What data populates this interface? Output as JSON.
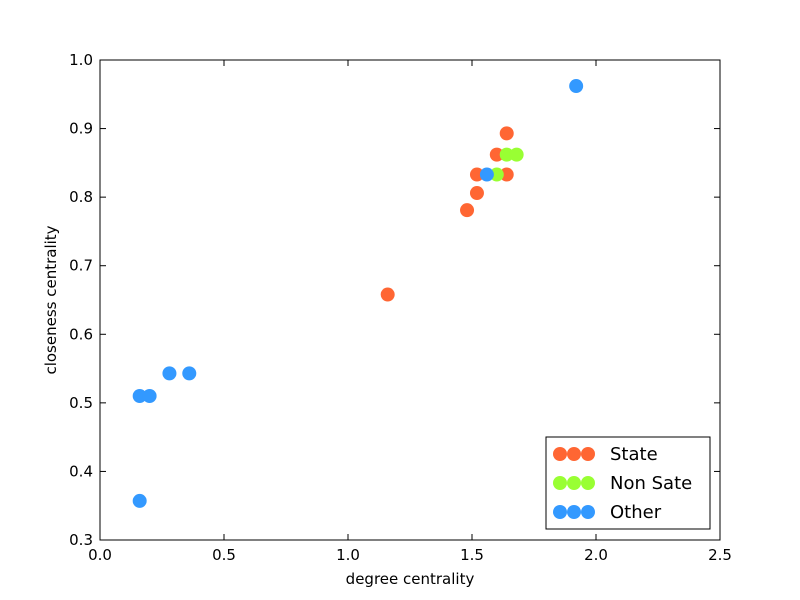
{
  "chart_data": {
    "type": "scatter",
    "xlabel": "degree centrality",
    "ylabel": "closeness centrality",
    "xlim": [
      0.0,
      2.5
    ],
    "ylim": [
      0.3,
      1.0
    ],
    "xticks": [
      "0.0",
      "0.5",
      "1.0",
      "1.5",
      "2.0",
      "2.5"
    ],
    "yticks": [
      "0.3",
      "0.4",
      "0.5",
      "0.6",
      "0.7",
      "0.8",
      "0.9",
      "1.0"
    ],
    "grid": false,
    "legend_position": "bottom-right",
    "series": [
      {
        "name": "State",
        "color": "#ff6633",
        "points": [
          {
            "x": 1.16,
            "y": 0.658
          },
          {
            "x": 1.48,
            "y": 0.781
          },
          {
            "x": 1.52,
            "y": 0.806
          },
          {
            "x": 1.52,
            "y": 0.833
          },
          {
            "x": 1.6,
            "y": 0.862
          },
          {
            "x": 1.64,
            "y": 0.893
          },
          {
            "x": 1.64,
            "y": 0.833
          }
        ]
      },
      {
        "name": "Non Sate",
        "color": "#99ff33",
        "points": [
          {
            "x": 1.6,
            "y": 0.833
          },
          {
            "x": 1.64,
            "y": 0.862
          },
          {
            "x": 1.68,
            "y": 0.862
          }
        ]
      },
      {
        "name": "Other",
        "color": "#3399ff",
        "points": [
          {
            "x": 0.16,
            "y": 0.357
          },
          {
            "x": 0.16,
            "y": 0.51
          },
          {
            "x": 0.2,
            "y": 0.51
          },
          {
            "x": 0.28,
            "y": 0.543
          },
          {
            "x": 0.36,
            "y": 0.543
          },
          {
            "x": 1.56,
            "y": 0.833
          },
          {
            "x": 1.92,
            "y": 0.962
          }
        ]
      }
    ]
  }
}
